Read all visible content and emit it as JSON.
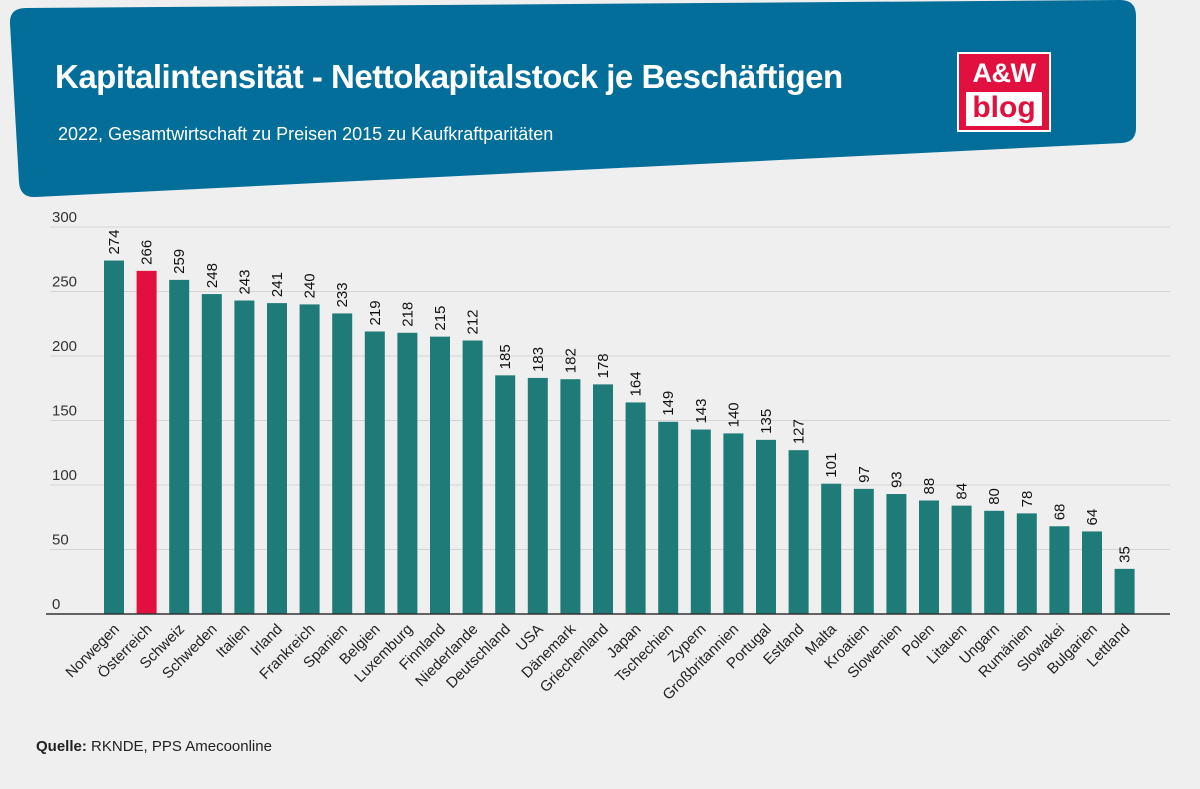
{
  "header": {
    "title": "Kapitalintensität - Nettokapitalstock je Beschäftigen",
    "subtitle": "2022, Gesamtwirtschaft zu Preisen 2015 zu Kaufkraftparitäten"
  },
  "logo": {
    "line1": "A&W",
    "line2": "blog"
  },
  "colors": {
    "banner": "#036e99",
    "bar": "#1e7b78",
    "highlight": "#e2103e",
    "background": "#efefef",
    "grid": "#d4d4d4"
  },
  "footer": {
    "source_label": "Quelle:",
    "source_text": "RKNDE, PPS Amecoonline"
  },
  "chart_data": {
    "type": "bar",
    "title": "Kapitalintensität - Nettokapitalstock je Beschäftigen",
    "subtitle": "2022, Gesamtwirtschaft zu Preisen 2015 zu Kaufkraftparitäten",
    "xlabel": "",
    "ylabel": "",
    "ylim": [
      0,
      300
    ],
    "yticks": [
      0,
      50,
      100,
      150,
      200,
      250,
      300
    ],
    "grid": true,
    "highlight_category": "Österreich",
    "categories": [
      "Norwegen",
      "Österreich",
      "Schweiz",
      "Schweden",
      "Italien",
      "Irland",
      "Frankreich",
      "Spanien",
      "Belgien",
      "Luxemburg",
      "Finnland",
      "Niederlande",
      "Deutschland",
      "USA",
      "Dänemark",
      "Griechenland",
      "Japan",
      "Tschechien",
      "Zypern",
      "Großbritannien",
      "Portugal",
      "Estland",
      "Malta",
      "Kroatien",
      "Slowenien",
      "Polen",
      "Litauen",
      "Ungarn",
      "Rumänien",
      "Slowakei",
      "Bulgarien",
      "Lettland"
    ],
    "values": [
      274,
      266,
      259,
      248,
      243,
      241,
      240,
      233,
      219,
      218,
      215,
      212,
      185,
      183,
      182,
      178,
      164,
      149,
      143,
      140,
      135,
      127,
      101,
      97,
      93,
      88,
      84,
      80,
      78,
      68,
      64,
      35
    ]
  }
}
